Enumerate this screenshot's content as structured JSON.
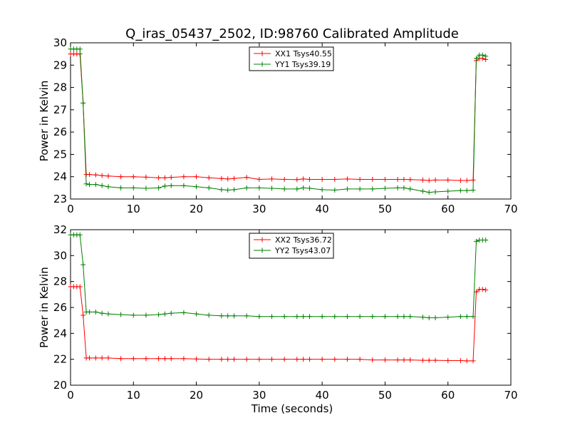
{
  "chart_data": [
    {
      "type": "line",
      "title": "Q_iras_05437_2502, ID:98760 Calibrated Amplitude",
      "xlabel": "",
      "ylabel": "Power in Kelvin",
      "xlim": [
        0,
        70
      ],
      "ylim": [
        23,
        30
      ],
      "xticks": [
        "0",
        "10",
        "20",
        "30",
        "40",
        "50",
        "60",
        "70"
      ],
      "yticks": [
        "23",
        "24",
        "25",
        "26",
        "27",
        "28",
        "29",
        "30"
      ],
      "legend_position": "top-center",
      "grid": false,
      "x": [
        0,
        0.5,
        1,
        1.5,
        2,
        2.5,
        3,
        4,
        5,
        6,
        8,
        10,
        12,
        14,
        15,
        16,
        18,
        20,
        22,
        24,
        25,
        26,
        28,
        30,
        32,
        34,
        36,
        37,
        38,
        40,
        42,
        44,
        46,
        48,
        50,
        52,
        53,
        54,
        56,
        57,
        58,
        60,
        62,
        63,
        64,
        64.5,
        65,
        65.5,
        66
      ],
      "series": [
        {
          "name": "XX1 Tsys40.55",
          "color": "#ff0000",
          "values": [
            29.5,
            29.5,
            29.5,
            29.5,
            27.3,
            24.1,
            24.1,
            24.08,
            24.05,
            24.03,
            24.0,
            24.0,
            23.98,
            23.95,
            23.95,
            23.97,
            24.0,
            24.0,
            23.95,
            23.92,
            23.9,
            23.92,
            23.97,
            23.88,
            23.9,
            23.88,
            23.87,
            23.9,
            23.88,
            23.88,
            23.88,
            23.9,
            23.88,
            23.88,
            23.88,
            23.88,
            23.88,
            23.87,
            23.85,
            23.83,
            23.85,
            23.85,
            23.83,
            23.83,
            23.85,
            29.2,
            29.3,
            29.3,
            29.25
          ]
        },
        {
          "name": "YY1 Tsys39.19",
          "color": "#008000",
          "values": [
            29.72,
            29.72,
            29.72,
            29.72,
            27.3,
            23.68,
            23.65,
            23.65,
            23.6,
            23.55,
            23.5,
            23.5,
            23.48,
            23.5,
            23.58,
            23.6,
            23.6,
            23.55,
            23.5,
            23.42,
            23.4,
            23.42,
            23.5,
            23.5,
            23.48,
            23.45,
            23.45,
            23.5,
            23.48,
            23.42,
            23.4,
            23.45,
            23.45,
            23.45,
            23.48,
            23.5,
            23.5,
            23.45,
            23.35,
            23.3,
            23.32,
            23.35,
            23.38,
            23.38,
            23.4,
            29.3,
            29.45,
            29.45,
            29.4
          ]
        }
      ]
    },
    {
      "type": "line",
      "title": "",
      "xlabel": "Time (seconds)",
      "ylabel": "Power in Kelvin",
      "xlim": [
        0,
        70
      ],
      "ylim": [
        20,
        32
      ],
      "xticks": [
        "0",
        "10",
        "20",
        "30",
        "40",
        "50",
        "60",
        "70"
      ],
      "yticks": [
        "20",
        "22",
        "24",
        "26",
        "28",
        "30",
        "32"
      ],
      "legend_position": "top-center",
      "grid": false,
      "x": [
        0,
        0.5,
        1,
        1.5,
        2,
        2.5,
        3,
        4,
        5,
        6,
        8,
        10,
        12,
        14,
        15,
        16,
        18,
        20,
        22,
        24,
        25,
        26,
        28,
        30,
        32,
        34,
        36,
        37,
        38,
        40,
        42,
        44,
        46,
        48,
        50,
        52,
        53,
        54,
        56,
        57,
        58,
        60,
        62,
        63,
        64,
        64.5,
        65,
        65.5,
        66
      ],
      "series": [
        {
          "name": "XX2 Tsys36.72",
          "color": "#ff0000",
          "values": [
            27.6,
            27.6,
            27.6,
            27.6,
            25.4,
            22.1,
            22.1,
            22.1,
            22.1,
            22.1,
            22.05,
            22.05,
            22.05,
            22.05,
            22.05,
            22.05,
            22.05,
            22.02,
            22.0,
            22.0,
            22.0,
            22.0,
            22.0,
            22.0,
            22.0,
            22.0,
            22.0,
            22.0,
            22.0,
            22.0,
            22.0,
            22.0,
            22.0,
            21.95,
            21.95,
            21.95,
            21.95,
            21.95,
            21.92,
            21.92,
            21.92,
            21.9,
            21.9,
            21.88,
            21.88,
            27.2,
            27.4,
            27.4,
            27.35
          ]
        },
        {
          "name": "YY2 Tsys43.07",
          "color": "#008000",
          "values": [
            31.6,
            31.6,
            31.6,
            31.6,
            29.3,
            25.65,
            25.65,
            25.65,
            25.55,
            25.5,
            25.45,
            25.4,
            25.4,
            25.45,
            25.5,
            25.55,
            25.6,
            25.5,
            25.4,
            25.35,
            25.35,
            25.35,
            25.35,
            25.3,
            25.3,
            25.3,
            25.3,
            25.3,
            25.3,
            25.3,
            25.3,
            25.3,
            25.3,
            25.3,
            25.3,
            25.3,
            25.3,
            25.3,
            25.25,
            25.2,
            25.2,
            25.25,
            25.3,
            25.3,
            25.3,
            31.1,
            31.2,
            31.2,
            31.2
          ]
        }
      ]
    }
  ]
}
